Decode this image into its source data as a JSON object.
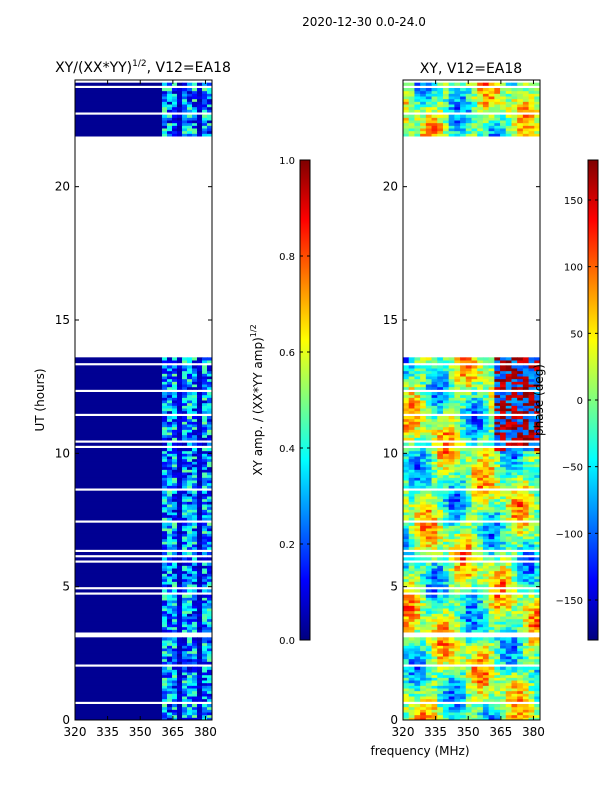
{
  "suptitle": "2020-12-30 0.0-24.0",
  "xlabel_shared": "frequency (MHz)",
  "colors": {
    "jet": [
      "#00007f",
      "#0000ff",
      "#007fff",
      "#00ffff",
      "#7fff7f",
      "#ffff00",
      "#ff7f00",
      "#ff0000",
      "#7f0000"
    ],
    "blank": "#ffffff"
  },
  "chart_data": [
    {
      "type": "heatmap",
      "title_main": "XY/(XX*YY)",
      "title_exp": "1/2",
      "title_suffix": ", V12=EA18",
      "xlabel": "",
      "ylabel": "UT (hours)",
      "xlim": [
        320,
        383
      ],
      "ylim": [
        0,
        24
      ],
      "xticks": [
        320,
        335,
        350,
        365,
        380
      ],
      "yticks": [
        0,
        5,
        10,
        15,
        20
      ],
      "data_ranges_hours": [
        [
          0,
          13.6
        ],
        [
          21.9,
          23.9
        ]
      ],
      "low_band_mhz": [
        320,
        360
      ],
      "low_band_value": 0.02,
      "high_band_mhz": [
        360,
        383
      ],
      "high_band_value_range": [
        0.05,
        0.5
      ],
      "colorbar": {
        "label_main": "XY amp. / (XX*YY amp)",
        "label_exp": "1/2",
        "range": [
          0,
          1
        ],
        "ticks": [
          "0.0",
          "0.2",
          "0.4",
          "0.6",
          "0.8",
          "1.0"
        ],
        "tick_values": [
          0,
          0.2,
          0.4,
          0.6,
          0.8,
          1.0
        ]
      }
    },
    {
      "type": "heatmap",
      "title": "XY, V12=EA18",
      "xlabel": "frequency (MHz)",
      "ylabel": "",
      "xlim": [
        320,
        383
      ],
      "ylim": [
        0,
        24
      ],
      "xticks": [
        320,
        335,
        350,
        365,
        380
      ],
      "yticks": [
        0,
        5,
        10,
        15,
        20
      ],
      "data_ranges_hours": [
        [
          0,
          13.6
        ],
        [
          21.9,
          23.9
        ]
      ],
      "value_range_deg": [
        -180,
        180
      ],
      "colorbar": {
        "label": "phase (deg)",
        "range": [
          -180,
          180
        ],
        "ticks": [
          "−150",
          "−100",
          "−50",
          "0",
          "50",
          "100",
          "150"
        ],
        "tick_values": [
          -150,
          -100,
          -50,
          0,
          50,
          100,
          150
        ]
      }
    }
  ]
}
